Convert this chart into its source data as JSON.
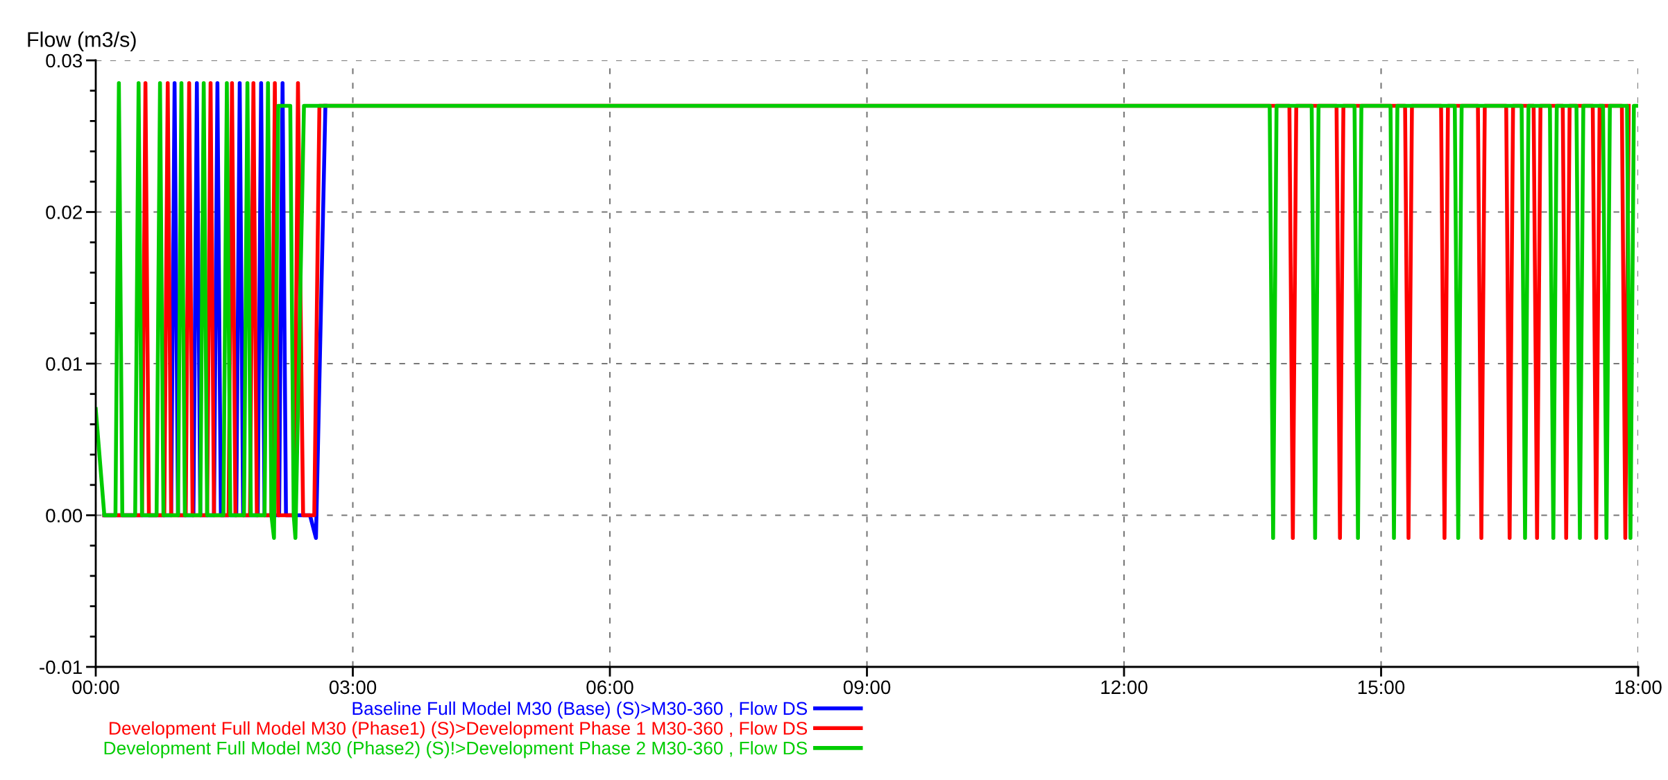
{
  "chart_data": {
    "type": "line",
    "ylabel": "Flow (m3/s)",
    "xlim": [
      0,
      18
    ],
    "ylim": [
      -0.01,
      0.03
    ],
    "xticks": [
      {
        "value": 0,
        "label": "00:00"
      },
      {
        "value": 3,
        "label": "03:00"
      },
      {
        "value": 6,
        "label": "06:00"
      },
      {
        "value": 9,
        "label": "09:00"
      },
      {
        "value": 12,
        "label": "12:00"
      },
      {
        "value": 15,
        "label": "15:00"
      },
      {
        "value": 18,
        "label": "18:00"
      }
    ],
    "yticks": [
      {
        "value": -0.01,
        "label": "-0.01"
      },
      {
        "value": -0.008,
        "label": null
      },
      {
        "value": -0.006,
        "label": null
      },
      {
        "value": -0.004,
        "label": null
      },
      {
        "value": -0.002,
        "label": null
      },
      {
        "value": 0,
        "label": "0.00"
      },
      {
        "value": 0.002,
        "label": null
      },
      {
        "value": 0.004,
        "label": null
      },
      {
        "value": 0.006,
        "label": null
      },
      {
        "value": 0.008,
        "label": null
      },
      {
        "value": 0.01,
        "label": "0.01"
      },
      {
        "value": 0.012,
        "label": null
      },
      {
        "value": 0.014,
        "label": null
      },
      {
        "value": 0.016,
        "label": null
      },
      {
        "value": 0.018,
        "label": null
      },
      {
        "value": 0.02,
        "label": "0.02"
      },
      {
        "value": 0.022,
        "label": null
      },
      {
        "value": 0.024,
        "label": null
      },
      {
        "value": 0.026,
        "label": null
      },
      {
        "value": 0.028,
        "label": null
      },
      {
        "value": 0.03,
        "label": "0.03"
      }
    ],
    "grid": true,
    "legend": "bottom left",
    "line_style": "solid",
    "marker": "none",
    "series": [
      {
        "name": "Baseline Full Model M30 (Base) (S)>M30-360 , Flow DS",
        "color": "#0000ff",
        "x": [
          0.1,
          0.88,
          0.92,
          0.96,
          1.14,
          1.18,
          1.22,
          1.38,
          1.42,
          1.46,
          1.64,
          1.68,
          1.72,
          1.89,
          1.93,
          1.97,
          2.14,
          2.18,
          2.22,
          2.5,
          2.57,
          2.68
        ],
        "values": [
          0,
          0,
          0.0285,
          0,
          0,
          0.0285,
          0,
          0,
          0.0285,
          0,
          0,
          0.0285,
          0,
          0,
          0.0285,
          0,
          0,
          0.0285,
          0,
          0,
          -0.0015,
          0.027
        ]
      },
      {
        "name": "Development Full Model M30 (Phase1) (S)>Development Phase 1 M30-360 , Flow DS",
        "color": "#ff0000",
        "x": [
          0.1,
          0.54,
          0.58,
          0.62,
          0.8,
          0.84,
          0.88,
          1.05,
          1.09,
          1.13,
          1.3,
          1.34,
          1.38,
          1.55,
          1.59,
          1.63,
          1.8,
          1.84,
          1.88,
          2.05,
          2.09,
          2.13,
          2.32,
          2.36,
          2.42,
          2.55,
          2.61,
          13.93,
          13.97,
          14.01,
          14.48,
          14.52,
          14.56,
          15.28,
          15.32,
          15.36,
          15.7,
          15.74,
          15.78,
          16.13,
          16.17,
          16.21,
          16.46,
          16.5,
          16.54,
          16.78,
          16.82,
          16.86,
          17.12,
          17.16,
          17.2,
          17.47,
          17.51,
          17.55,
          17.81,
          17.85,
          17.89
        ],
        "values": [
          0,
          0,
          0.0285,
          0,
          0,
          0.0285,
          0,
          0,
          0.0285,
          0,
          0,
          0.0285,
          0,
          0,
          0.0285,
          0,
          0,
          0.0285,
          0,
          0,
          0.0285,
          0,
          0,
          0.0285,
          0,
          0,
          0.027,
          0.027,
          -0.0015,
          0.027,
          0.027,
          -0.0015,
          0.027,
          0.027,
          -0.0015,
          0.027,
          0.027,
          -0.0015,
          0.027,
          0.027,
          -0.0015,
          0.027,
          0.027,
          -0.0015,
          0.027,
          0.027,
          -0.0015,
          0.027,
          0.027,
          -0.0015,
          0.027,
          0.027,
          -0.0015,
          0.027,
          0.027,
          -0.0015,
          0.027
        ]
      },
      {
        "name": "Development Full Model M30 (Phase2) (S)!>Development Phase 2 M30-360 , Flow DS",
        "color": "#00cc00",
        "x": [
          0,
          0.1,
          0.23,
          0.27,
          0.31,
          0.46,
          0.5,
          0.54,
          0.71,
          0.75,
          0.79,
          0.96,
          1.0,
          1.04,
          1.22,
          1.26,
          1.3,
          1.49,
          1.53,
          1.57,
          1.73,
          1.77,
          1.81,
          1.97,
          2.01,
          2.05,
          2.08,
          2.13,
          2.27,
          2.31,
          2.33,
          2.43,
          13.7,
          13.74,
          13.78,
          14.19,
          14.23,
          14.27,
          14.69,
          14.73,
          14.77,
          15.11,
          15.15,
          15.19,
          15.86,
          15.9,
          15.94,
          16.64,
          16.68,
          16.72,
          16.97,
          17.01,
          17.05,
          17.28,
          17.32,
          17.36,
          17.59,
          17.63,
          17.67,
          17.87,
          17.91,
          17.95,
          18
        ],
        "values": [
          0.007,
          0,
          0,
          0.0285,
          0,
          0,
          0.0285,
          0,
          0,
          0.0285,
          0,
          0,
          0.0285,
          0,
          0,
          0.0285,
          0,
          0,
          0.0285,
          0,
          0,
          0.0285,
          0,
          0,
          0.0285,
          0,
          -0.0015,
          0.027,
          0.027,
          0,
          -0.0015,
          0.027,
          0.027,
          -0.0015,
          0.027,
          0.027,
          -0.0015,
          0.027,
          0.027,
          -0.0015,
          0.027,
          0.027,
          -0.0015,
          0.027,
          0.027,
          -0.0015,
          0.027,
          0.027,
          -0.0015,
          0.027,
          0.027,
          -0.0015,
          0.027,
          0.027,
          -0.0015,
          0.027,
          0.027,
          -0.0015,
          0.027,
          0.027,
          -0.0015,
          0.027,
          0.027
        ]
      }
    ]
  }
}
